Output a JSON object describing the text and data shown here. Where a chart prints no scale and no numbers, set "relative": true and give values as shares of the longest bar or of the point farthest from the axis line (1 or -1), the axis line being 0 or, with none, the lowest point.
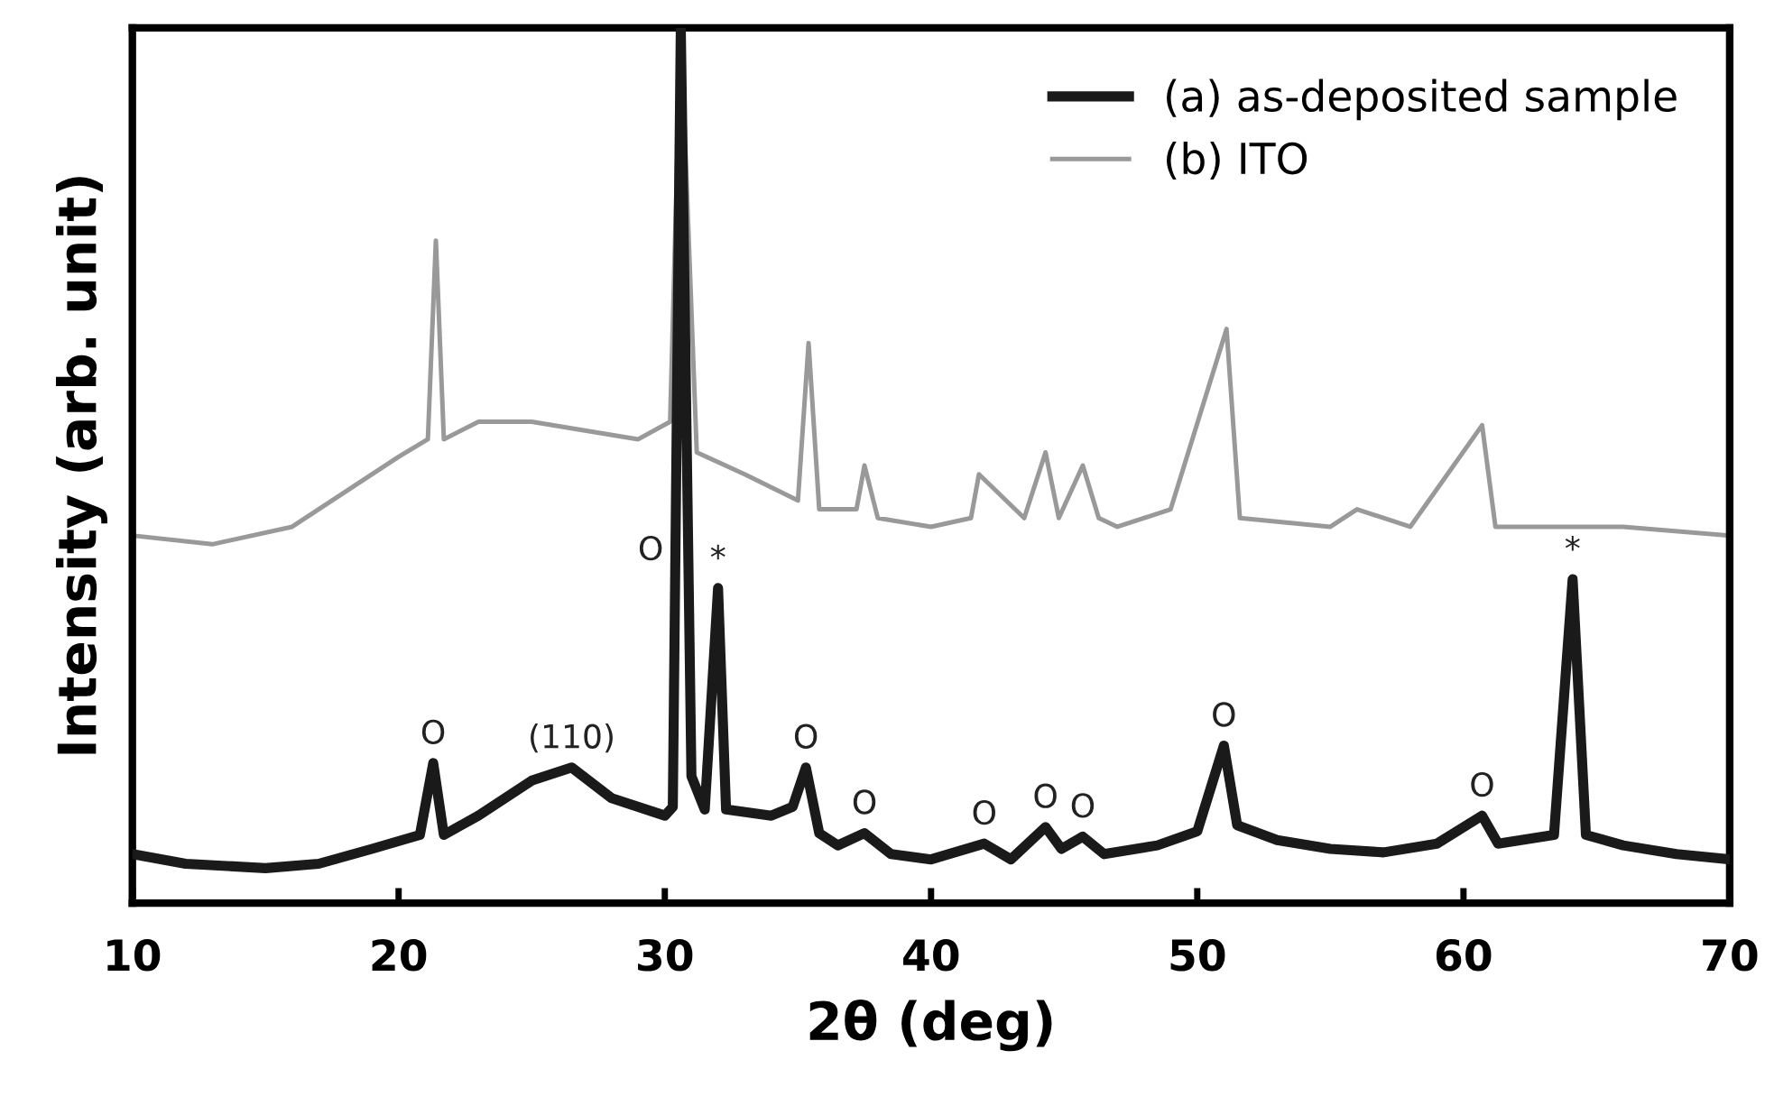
{
  "chart_data": {
    "type": "line",
    "xlabel": "2θ (deg)",
    "ylabel": "Intensity (arb. unit)",
    "relative": true,
    "xlim": [
      10,
      70
    ],
    "xticks": [
      10,
      20,
      30,
      40,
      50,
      60,
      70
    ],
    "grid": false,
    "legend": "top right",
    "marker": "none",
    "line_style": "solid",
    "series": [
      {
        "name": "(a) as-deposited sample",
        "color": "#1a1a1a",
        "x": [
          10,
          12,
          15,
          17,
          19,
          20.8,
          21.3,
          21.7,
          23,
          25,
          26.5,
          28,
          30,
          30.3,
          30.6,
          31.0,
          31.5,
          32.0,
          32.3,
          34,
          34.8,
          35.3,
          35.8,
          36.5,
          37.5,
          38.5,
          40,
          42.0,
          43,
          44.3,
          44.9,
          45.7,
          46.5,
          48.5,
          50,
          51.0,
          51.5,
          53,
          55,
          57,
          59,
          60.7,
          61.3,
          63.4,
          64.1,
          64.6,
          66,
          68,
          70
        ],
        "values": [
          0.056,
          0.045,
          0.04,
          0.045,
          0.062,
          0.078,
          0.16,
          0.078,
          0.1,
          0.14,
          0.155,
          0.12,
          0.1,
          0.11,
          1.0,
          0.145,
          0.107,
          0.36,
          0.107,
          0.1,
          0.11,
          0.155,
          0.08,
          0.066,
          0.08,
          0.056,
          0.05,
          0.068,
          0.05,
          0.087,
          0.062,
          0.076,
          0.056,
          0.066,
          0.082,
          0.18,
          0.089,
          0.072,
          0.062,
          0.058,
          0.068,
          0.1,
          0.068,
          0.078,
          0.37,
          0.078,
          0.066,
          0.056,
          0.05
        ]
      },
      {
        "name": "(b) ITO",
        "color": "#999999",
        "x": [
          10,
          13,
          16,
          18,
          20,
          21.1,
          21.4,
          21.7,
          23,
          25,
          27,
          29,
          30.2,
          30.6,
          31.2,
          33,
          35,
          35.4,
          35.8,
          37.2,
          37.5,
          38,
          40,
          41.5,
          41.8,
          43.5,
          44.3,
          44.8,
          45.7,
          46.3,
          47,
          49,
          51.1,
          51.6,
          55,
          56,
          58,
          60.7,
          61.2,
          63,
          66,
          70
        ],
        "values": [
          0.42,
          0.41,
          0.43,
          0.47,
          0.51,
          0.53,
          0.757,
          0.53,
          0.55,
          0.55,
          0.54,
          0.53,
          0.55,
          1.0,
          0.515,
          0.49,
          0.46,
          0.64,
          0.45,
          0.45,
          0.5,
          0.44,
          0.43,
          0.44,
          0.49,
          0.44,
          0.515,
          0.44,
          0.5,
          0.44,
          0.43,
          0.45,
          0.656,
          0.44,
          0.43,
          0.45,
          0.43,
          0.546,
          0.43,
          0.43,
          0.43,
          0.42
        ]
      }
    ],
    "annotations": [
      {
        "text": "O",
        "x": 21.3,
        "y": 0.16
      },
      {
        "text": "(110)",
        "x": 26.5,
        "y": 0.155
      },
      {
        "text": "O",
        "x": 30.6,
        "y": 0.37
      },
      {
        "text": "*",
        "x": 32.0,
        "y": 0.36
      },
      {
        "text": "O",
        "x": 35.3,
        "y": 0.155
      },
      {
        "text": "O",
        "x": 37.5,
        "y": 0.08
      },
      {
        "text": "O",
        "x": 42.0,
        "y": 0.068
      },
      {
        "text": "O",
        "x": 44.3,
        "y": 0.087
      },
      {
        "text": "O",
        "x": 45.7,
        "y": 0.076
      },
      {
        "text": "O",
        "x": 51.0,
        "y": 0.18
      },
      {
        "text": "O",
        "x": 60.7,
        "y": 0.1
      },
      {
        "text": "*",
        "x": 64.1,
        "y": 0.37
      }
    ]
  }
}
